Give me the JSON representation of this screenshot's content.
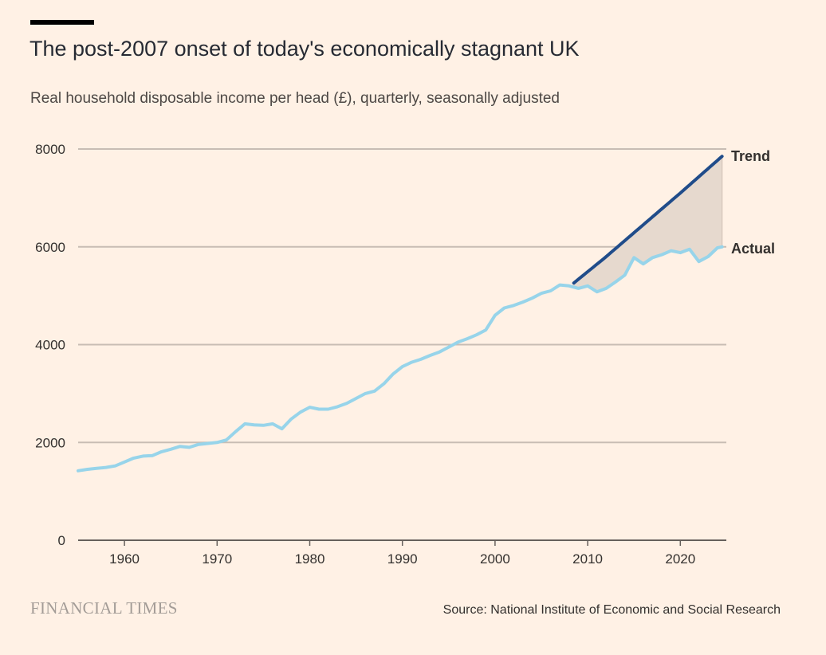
{
  "page": {
    "title": "The post-2007 onset of today's economically stagnant UK",
    "subtitle": "Real household disposable income per head (£), quarterly, seasonally adjusted",
    "source": "Source: National Institute of Economic and Social Research",
    "publisher": "FINANCIAL TIMES"
  },
  "colors": {
    "background": "#fff1e5",
    "actual": "#97d4ea",
    "trend": "#204c8a",
    "gap_fill": "#e6d9ce",
    "gridline": "#c8bdb4",
    "text": "#33302e"
  },
  "chart_data": {
    "type": "line",
    "title": "The post-2007 onset of today's economically stagnant UK",
    "subtitle": "Real household disposable income per head (£), quarterly, seasonally adjusted",
    "xlabel": "",
    "ylabel": "",
    "xlim": [
      1955,
      2024.5
    ],
    "ylim": [
      0,
      8000
    ],
    "x_ticks": [
      1960,
      1970,
      1980,
      1990,
      2000,
      2010,
      2020
    ],
    "x_tick_labels": [
      "1960",
      "1970",
      "1980",
      "1990",
      "2000",
      "2010",
      "2020"
    ],
    "y_ticks": [
      0,
      2000,
      4000,
      6000,
      8000
    ],
    "y_tick_labels": [
      "0",
      "2000",
      "4000",
      "6000",
      "8000"
    ],
    "grid": true,
    "series": [
      {
        "name": "Actual",
        "color": "#97d4ea",
        "x": [
          1955,
          1956,
          1957,
          1958,
          1959,
          1960,
          1961,
          1962,
          1963,
          1964,
          1965,
          1966,
          1967,
          1968,
          1969,
          1970,
          1971,
          1972,
          1973,
          1974,
          1975,
          1976,
          1977,
          1978,
          1979,
          1980,
          1981,
          1982,
          1983,
          1984,
          1985,
          1986,
          1987,
          1988,
          1989,
          1990,
          1991,
          1992,
          1993,
          1994,
          1995,
          1996,
          1997,
          1998,
          1999,
          2000,
          2001,
          2002,
          2003,
          2004,
          2005,
          2006,
          2007,
          2008,
          2009,
          2010,
          2011,
          2012,
          2013,
          2014,
          2015,
          2016,
          2017,
          2018,
          2019,
          2020,
          2021,
          2022,
          2023,
          2024,
          2024.5
        ],
        "values": [
          1420,
          1450,
          1470,
          1490,
          1520,
          1600,
          1680,
          1720,
          1730,
          1810,
          1860,
          1920,
          1900,
          1960,
          1980,
          2000,
          2050,
          2220,
          2380,
          2360,
          2350,
          2380,
          2280,
          2480,
          2620,
          2720,
          2680,
          2680,
          2730,
          2800,
          2900,
          3000,
          3050,
          3200,
          3400,
          3550,
          3640,
          3700,
          3780,
          3850,
          3950,
          4050,
          4120,
          4200,
          4300,
          4600,
          4750,
          4800,
          4870,
          4950,
          5050,
          5100,
          5220,
          5200,
          5150,
          5200,
          5080,
          5150,
          5280,
          5420,
          5780,
          5650,
          5780,
          5840,
          5920,
          5880,
          5950,
          5700,
          5800,
          5980,
          6000
        ]
      },
      {
        "name": "Trend",
        "color": "#204c8a",
        "x": [
          2008.5,
          2012,
          2016,
          2020,
          2024.5
        ],
        "values": [
          5260,
          5800,
          6450,
          7100,
          7850
        ]
      }
    ],
    "series_labels": [
      "Trend",
      "Actual"
    ]
  }
}
